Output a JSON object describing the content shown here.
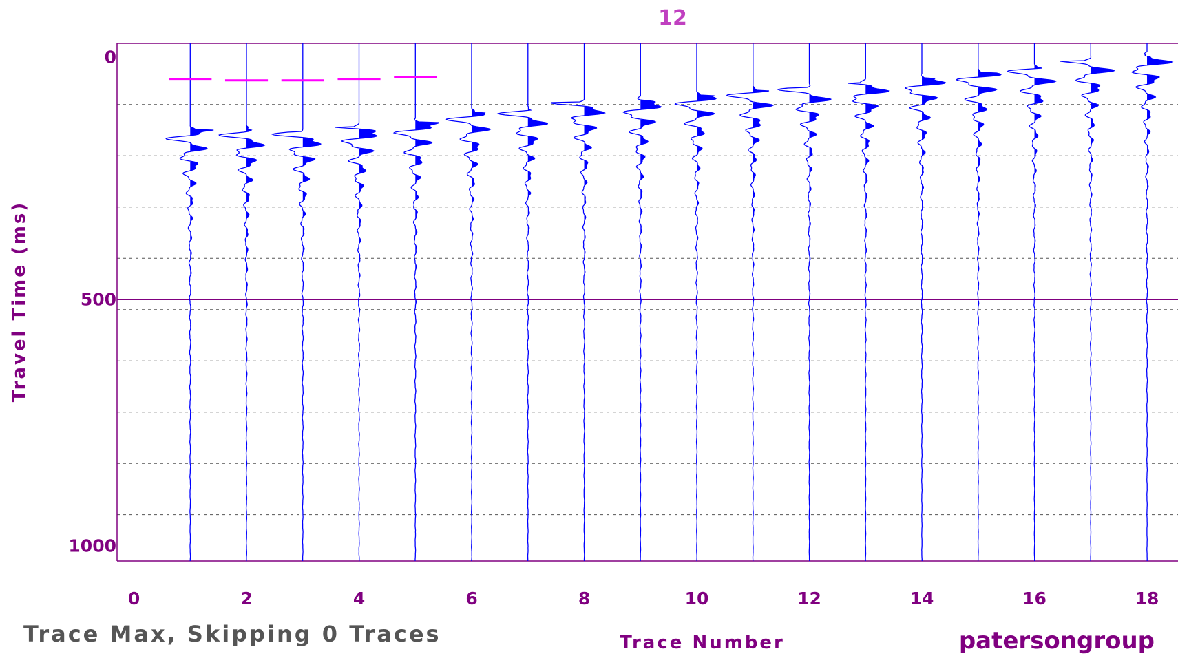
{
  "chart_data": {
    "type": "seismic-wiggle",
    "title": "12",
    "xlabel": "Trace Number",
    "ylabel": "Travel Time (ms)",
    "xlim": [
      -0.3,
      18.55
    ],
    "ylim": [
      1030,
      -20
    ],
    "x_ticks": [
      "0",
      "2",
      "4",
      "6",
      "8",
      "10",
      "12",
      "14",
      "16",
      "18"
    ],
    "x_tick_values": [
      0,
      2,
      4,
      6,
      8,
      10,
      12,
      14,
      16,
      18
    ],
    "y_ticks": [
      "0",
      "500",
      "1000"
    ],
    "y_tick_values": [
      0,
      500,
      1000
    ],
    "y_minor_step_ms": 104,
    "grid": "dashed-horizontal",
    "traces": [
      1,
      2,
      3,
      4,
      5,
      6,
      7,
      8,
      9,
      10,
      11,
      12,
      13,
      14,
      15,
      16,
      17,
      18
    ],
    "first_arrival_ms": [
      155,
      155,
      160,
      150,
      140,
      120,
      115,
      100,
      95,
      85,
      75,
      70,
      60,
      50,
      40,
      30,
      15,
      5
    ],
    "first_break_picks": [
      {
        "trace": 1,
        "time_ms": 52
      },
      {
        "trace": 2,
        "time_ms": 55
      },
      {
        "trace": 3,
        "time_ms": 55
      },
      {
        "trace": 4,
        "time_ms": 52
      },
      {
        "trace": 5,
        "time_ms": 48
      }
    ],
    "colors": {
      "axis": "#800080",
      "trace": "#0000ff",
      "pick": "#ff00ff",
      "grid": "#555555",
      "footer": "#555555",
      "title": "#c040c0"
    }
  },
  "footer": {
    "left_note": "Trace Max, Skipping 0 Traces",
    "logo": "patersongroup"
  }
}
